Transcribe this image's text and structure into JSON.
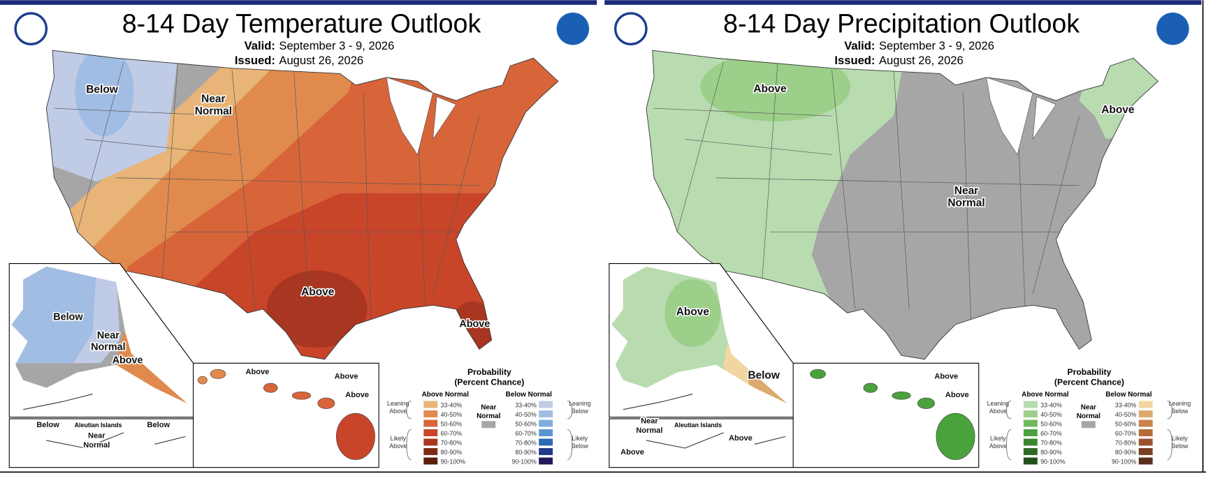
{
  "panels": [
    {
      "title": "8-14 Day Temperature Outlook",
      "valid_label": "Valid:",
      "valid": "September 3 - 9, 2026",
      "issued_label": "Issued:",
      "issued": "August 26, 2026",
      "map_labels": [
        {
          "lines": [
            "Below"
          ]
        },
        {
          "lines": [
            "Near",
            "Normal"
          ]
        },
        {
          "lines": [
            "Above"
          ]
        },
        {
          "lines": [
            "Above"
          ]
        },
        {
          "lines": [
            "Below"
          ]
        },
        {
          "lines": [
            "Near",
            "Normal"
          ]
        },
        {
          "lines": [
            "Above"
          ]
        },
        {
          "lines": [
            "Above"
          ]
        },
        {
          "lines": [
            "Above"
          ]
        },
        {
          "lines": [
            "Above"
          ]
        },
        {
          "lines": [
            "Below"
          ]
        },
        {
          "lines": [
            "Below"
          ]
        },
        {
          "lines": [
            "Near",
            "Normal"
          ]
        }
      ],
      "aleutian": "Aleutian Islands",
      "legend": {
        "title": "Probability",
        "subtitle": "(Percent Chance)",
        "above_header": "Above Normal",
        "below_header": "Below Normal",
        "near": [
          "Near",
          "Normal"
        ],
        "near_color": "#a6a6a6",
        "leaning_above": [
          "Leaning",
          "Above"
        ],
        "likely_above": [
          "Likely",
          "Above"
        ],
        "leaning_below": [
          "Leaning",
          "Below"
        ],
        "likely_below": [
          "Likely",
          "Below"
        ],
        "ranges": [
          "33-40%",
          "40-50%",
          "50-60%",
          "60-70%",
          "70-80%",
          "80-90%",
          "90-100%"
        ],
        "above_colors": [
          "#e8b477",
          "#e08a4e",
          "#d8643a",
          "#c8452a",
          "#a83620",
          "#7e2a14",
          "#5c1d0c"
        ],
        "below_colors": [
          "#c0cbe6",
          "#a2bde3",
          "#7eaee0",
          "#5c97d4",
          "#2e6bb5",
          "#1f3a8a",
          "#221b5a"
        ]
      }
    },
    {
      "title": "8-14 Day Precipitation Outlook",
      "valid_label": "Valid:",
      "valid": "September 3 - 9, 2026",
      "issued_label": "Issued:",
      "issued": "August 26, 2026",
      "map_labels": [
        {
          "lines": [
            "Above"
          ]
        },
        {
          "lines": [
            "Above"
          ]
        },
        {
          "lines": [
            "Near",
            "Normal"
          ]
        },
        {
          "lines": [
            "Above"
          ]
        },
        {
          "lines": [
            "Below"
          ]
        },
        {
          "lines": [
            "Above"
          ]
        },
        {
          "lines": [
            "Above"
          ]
        },
        {
          "lines": [
            "Near",
            "Normal"
          ]
        },
        {
          "lines": [
            "Above"
          ]
        },
        {
          "lines": [
            "Above"
          ]
        }
      ],
      "aleutian": "Aleutian Islands",
      "legend": {
        "title": "Probability",
        "subtitle": "(Percent Chance)",
        "above_header": "Above Normal",
        "below_header": "Below Normal",
        "near": [
          "Near",
          "Normal"
        ],
        "near_color": "#a6a6a6",
        "leaning_above": [
          "Leaning",
          "Above"
        ],
        "likely_above": [
          "Likely",
          "Above"
        ],
        "leaning_below": [
          "Leaning",
          "Below"
        ],
        "likely_below": [
          "Likely",
          "Below"
        ],
        "ranges": [
          "33-40%",
          "40-50%",
          "50-60%",
          "60-70%",
          "70-80%",
          "80-90%",
          "90-100%"
        ],
        "above_colors": [
          "#b8dbb0",
          "#9ccf8a",
          "#6fbb5a",
          "#49a23c",
          "#3b8530",
          "#2e6a24",
          "#22501c"
        ],
        "below_colors": [
          "#f2d6a2",
          "#dcaa6e",
          "#c8834a",
          "#b56a3a",
          "#9a5230",
          "#7a3f22",
          "#5a2e1c"
        ]
      }
    }
  ]
}
